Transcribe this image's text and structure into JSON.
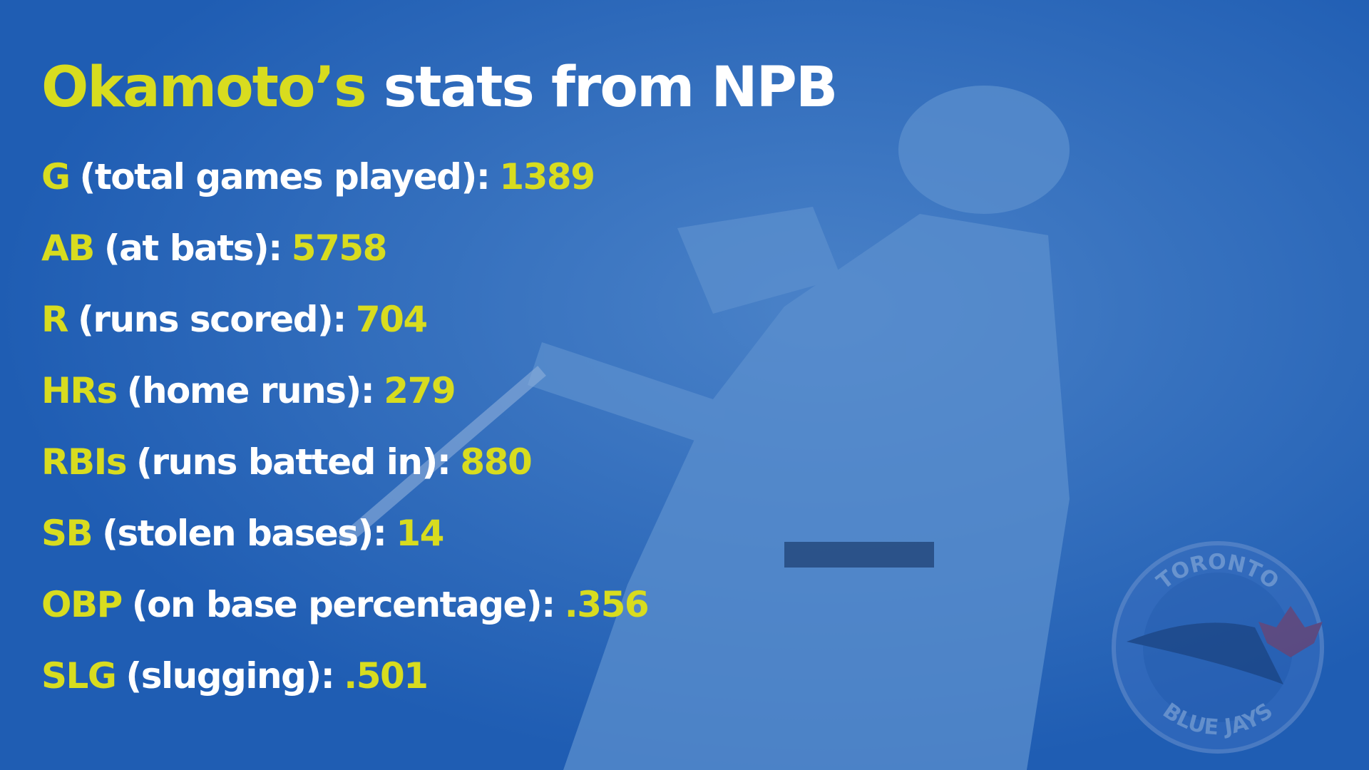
{
  "title": {
    "highlight": "Okamoto’s",
    "rest": "stats from NPB"
  },
  "stats": [
    {
      "abbr": "G",
      "description": "(total games played):",
      "value": "1389"
    },
    {
      "abbr": "AB",
      "description": "(at bats):",
      "value": "5758"
    },
    {
      "abbr": "R",
      "description": "(runs scored):",
      "value": "704"
    },
    {
      "abbr": "HRs",
      "description": "(home runs):",
      "value": "279"
    },
    {
      "abbr": "RBIs",
      "description": "(runs batted in):",
      "value": "880"
    },
    {
      "abbr": "SB",
      "description": "(stolen bases):",
      "value": "14"
    },
    {
      "abbr": "OBP",
      "description": "(on base percentage):",
      "value": ".356"
    },
    {
      "abbr": "SLG",
      "description": "(slugging):",
      "value": ".501"
    }
  ],
  "logo": {
    "top": "TORONTO",
    "bottom": "BLUE JAYS"
  }
}
